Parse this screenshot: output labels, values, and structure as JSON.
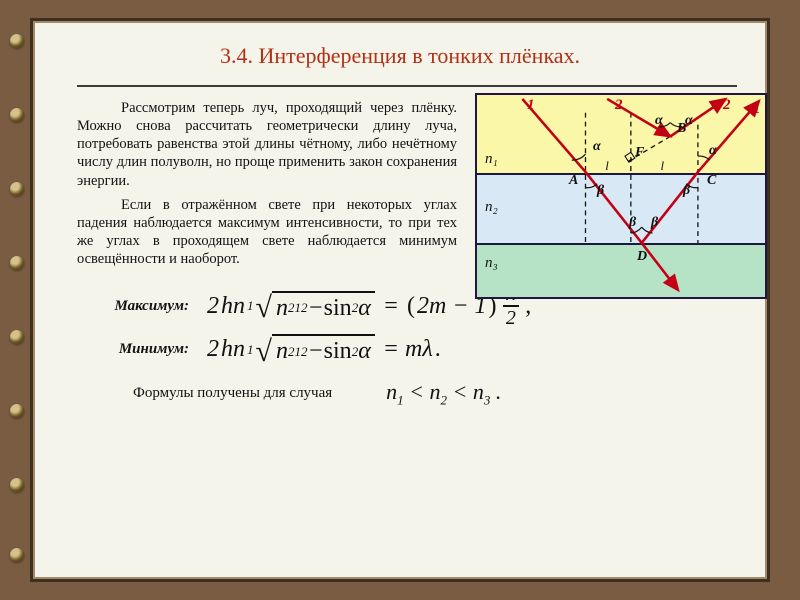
{
  "title": "3.4. Интерференция в тонких плёнках.",
  "paragraph1": "Рассмотрим теперь луч, проходящий через плёнку. Можно снова рассчитать геометрически длину луча, потребовать равенства этой длины чётному, либо нечётному числу длин полуволн, но проще применить закон сохранения энергии.",
  "paragraph2": "Если в отражённом свете при некоторых углах падения наблюдается максимум интенсивности, то при тех же углах в проходящем свете наблюдается минимум освещённости и наоборот.",
  "max_label": "Максимум:",
  "min_label": "Минимум:",
  "footer_text": "Формулы получены для случая",
  "ineq": "n₁ < n₂ < n₃ .",
  "diagram": {
    "n1": "n₁",
    "n2": "n₂",
    "n3": "n₃",
    "A": "A",
    "B": "B",
    "C": "C",
    "D": "D",
    "F": "F",
    "alpha": "α",
    "beta": "β",
    "one": "1",
    "ray1": "1",
    "ray2": "2",
    "colors": {
      "border": "#1f1642",
      "top": "#fbf7a8",
      "mid": "#d8e8f4",
      "bot": "#b6e3c6",
      "ray": "#c40014",
      "dash": "#111111"
    }
  },
  "rings": [
    34,
    108,
    182,
    256,
    330,
    404,
    478,
    548
  ]
}
